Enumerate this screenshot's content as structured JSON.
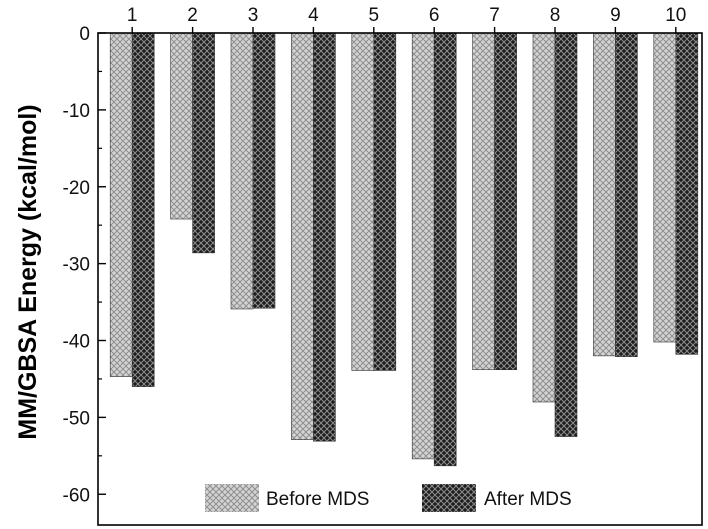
{
  "chart_data": {
    "type": "bar",
    "title": "",
    "xlabel": "",
    "ylabel": "MM/GBSA Energy (kcal/mol)",
    "categories": [
      "1",
      "2",
      "3",
      "4",
      "5",
      "6",
      "7",
      "8",
      "9",
      "10"
    ],
    "series": [
      {
        "name": "Before MDS",
        "color": "#b8b8b8",
        "pattern": "light-crosshatch",
        "values": [
          -44.7,
          -24.2,
          -35.9,
          -52.9,
          -43.9,
          -55.4,
          -43.8,
          -48.0,
          -42.0,
          -40.2
        ]
      },
      {
        "name": "After MDS",
        "color": "#3a3a3a",
        "pattern": "dark-crosshatch",
        "values": [
          -46.0,
          -28.6,
          -35.8,
          -53.1,
          -43.9,
          -56.3,
          -43.8,
          -52.5,
          -42.1,
          -41.8
        ]
      }
    ],
    "ylim": [
      -64,
      0
    ],
    "yticks": [
      0,
      -10,
      -20,
      -30,
      -40,
      -50,
      -60
    ],
    "grid": false,
    "legend_position": "bottom"
  }
}
